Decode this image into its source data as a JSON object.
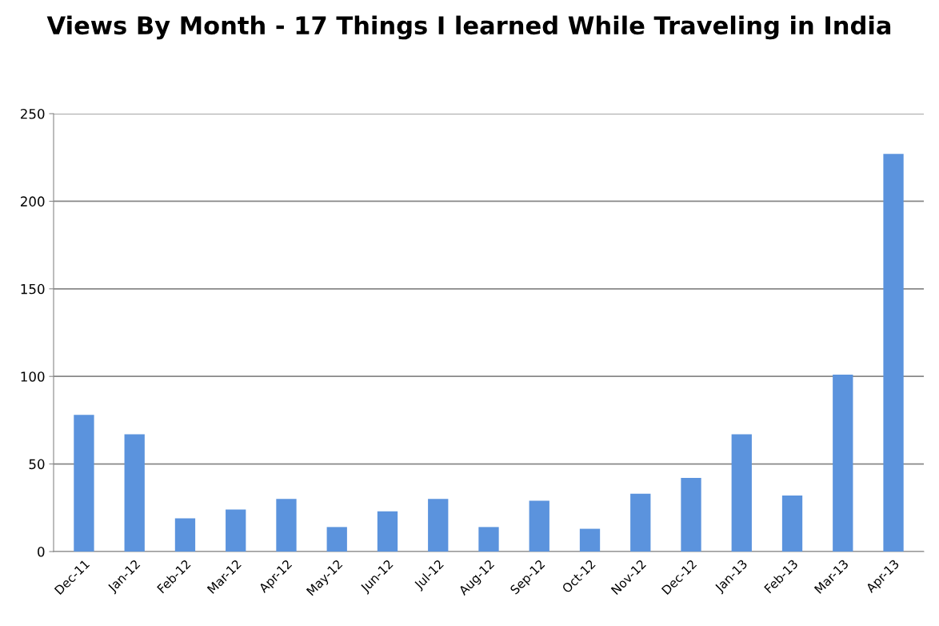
{
  "chart_data": {
    "type": "bar",
    "title": "Views By Month - 17 Things I learned While Traveling in India",
    "categories": [
      "Dec-11",
      "Jan-12",
      "Feb-12",
      "Mar-12",
      "Apr-12",
      "May-12",
      "Jun-12",
      "Jul-12",
      "Aug-12",
      "Sep-12",
      "Oct-12",
      "Nov-12",
      "Dec-12",
      "Jan-13",
      "Feb-13",
      "Mar-13",
      "Apr-13"
    ],
    "values": [
      78,
      67,
      19,
      24,
      30,
      14,
      23,
      30,
      14,
      29,
      13,
      33,
      42,
      67,
      32,
      101,
      227
    ],
    "color": "#5b93dd",
    "ylim": [
      0,
      250
    ],
    "yticks": [
      0,
      50,
      100,
      150,
      200,
      250
    ],
    "grid": "y",
    "legend": false
  }
}
